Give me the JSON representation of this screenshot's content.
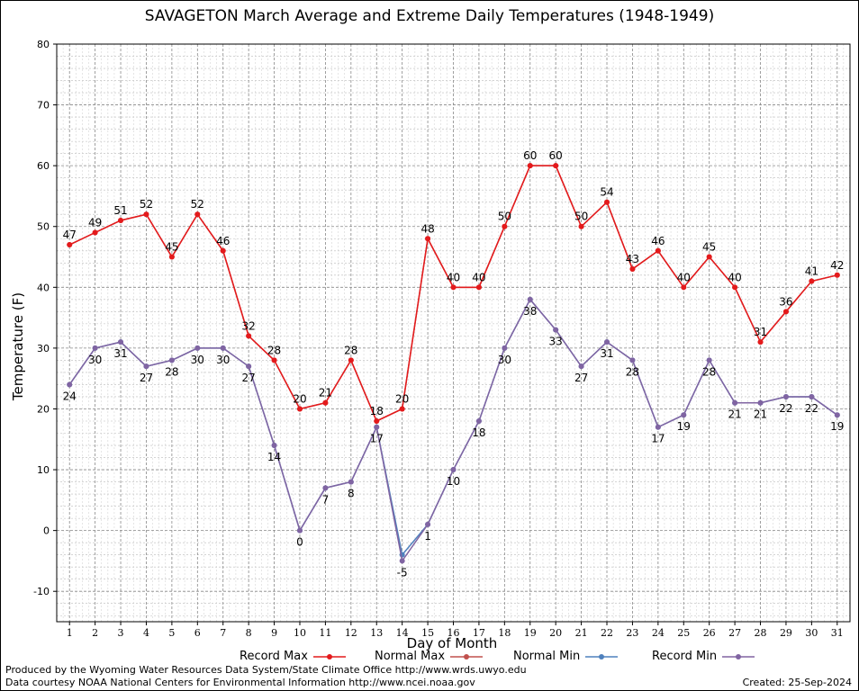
{
  "chart_data": {
    "type": "line",
    "title": "SAVAGETON March Average and Extreme Daily Temperatures (1948-1949)",
    "xlabel": "Day of Month",
    "ylabel": "Temperature (F)",
    "x": [
      1,
      2,
      3,
      4,
      5,
      6,
      7,
      8,
      9,
      10,
      11,
      12,
      13,
      14,
      15,
      16,
      17,
      18,
      19,
      20,
      21,
      22,
      23,
      24,
      25,
      26,
      27,
      28,
      29,
      30,
      31
    ],
    "xlim": [
      0.5,
      31.5
    ],
    "ylim": [
      -15,
      80
    ],
    "yticks": [
      -10,
      0,
      10,
      20,
      30,
      40,
      50,
      60,
      70,
      80
    ],
    "grid": true,
    "legend_position": "bottom",
    "series": [
      {
        "name": "Record Max",
        "color": "#e41a1c",
        "values": [
          47,
          49,
          51,
          52,
          45,
          52,
          46,
          32,
          28,
          20,
          21,
          28,
          18,
          20,
          48,
          40,
          40,
          50,
          60,
          60,
          50,
          54,
          43,
          46,
          40,
          45,
          40,
          31,
          36,
          41,
          42
        ]
      },
      {
        "name": "Normal Max",
        "color": "#c0504d",
        "values": [
          47,
          49,
          51,
          52,
          45,
          52,
          46,
          32,
          28,
          20,
          21,
          28,
          18,
          20,
          48,
          40,
          40,
          50,
          60,
          60,
          50,
          54,
          43,
          46,
          40,
          45,
          40,
          31,
          36,
          41,
          42
        ]
      },
      {
        "name": "Normal Min",
        "color": "#4f81bd",
        "values": [
          24,
          30,
          31,
          27,
          28,
          30,
          30,
          27,
          14,
          0,
          7,
          8,
          17,
          -4,
          1,
          10,
          18,
          30,
          38,
          33,
          27,
          31,
          28,
          17,
          19,
          28,
          21,
          21,
          22,
          22,
          19
        ]
      },
      {
        "name": "Record Min",
        "color": "#8064a2",
        "values": [
          24,
          30,
          31,
          27,
          28,
          30,
          30,
          27,
          14,
          0,
          7,
          8,
          17,
          -5,
          1,
          10,
          18,
          30,
          38,
          33,
          27,
          31,
          28,
          17,
          19,
          28,
          21,
          21,
          22,
          22,
          19
        ]
      }
    ],
    "labels_max": [
      47,
      49,
      51,
      52,
      45,
      52,
      46,
      32,
      28,
      20,
      21,
      28,
      18,
      20,
      48,
      40,
      40,
      50,
      60,
      60,
      50,
      54,
      43,
      46,
      40,
      45,
      40,
      31,
      36,
      41,
      42
    ],
    "labels_min": [
      24,
      30,
      31,
      27,
      28,
      30,
      30,
      27,
      14,
      0,
      7,
      8,
      17,
      -5,
      1,
      10,
      18,
      30,
      38,
      33,
      27,
      31,
      28,
      17,
      19,
      28,
      21,
      21,
      22,
      22,
      19
    ]
  },
  "legend": {
    "record_max": "Record Max",
    "normal_max": "Normal Max",
    "normal_min": "Normal Min",
    "record_min": "Record Min"
  },
  "footer": {
    "credit1": "Produced by the Wyoming Water Resources Data System/State Climate Office http://www.wrds.uwyo.edu",
    "credit2": "Data courtesy NOAA National Centers for Environmental Information http://www.ncei.noaa.gov",
    "created": "Created:  25-Sep-2024"
  },
  "colors": {
    "record_max": "#e41a1c",
    "normal_max": "#c0504d",
    "normal_min": "#4f81bd",
    "record_min": "#8064a2"
  }
}
